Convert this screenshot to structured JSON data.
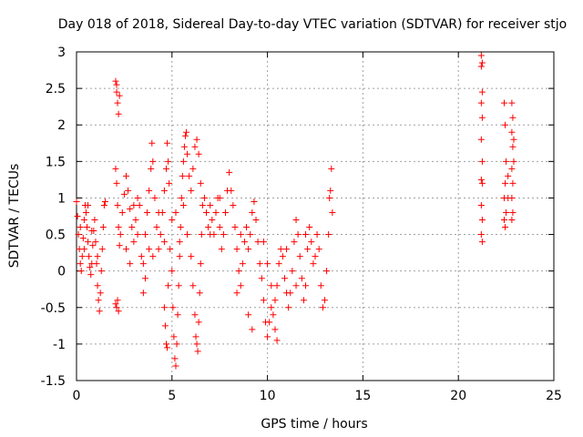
{
  "chart_data": {
    "type": "scatter",
    "title": "Day 018 of 2018, Sidereal Day-to-day VTEC variation (SDTVAR) for receiver stjo",
    "xlabel": "GPS time / hours",
    "ylabel": "SDTVAR / TECUs",
    "xlim": [
      0,
      25
    ],
    "ylim": [
      -1.5,
      3
    ],
    "grid": true,
    "marker": "plus",
    "color": "#ff0000",
    "x_ticks": [
      0,
      5,
      10,
      15,
      20,
      25
    ],
    "x_tick_labels": [
      "0",
      "5",
      "10",
      "15",
      "20",
      "25"
    ],
    "y_ticks": [
      -1.5,
      -1,
      -0.5,
      0,
      0.5,
      1,
      1.5,
      2,
      2.5,
      3
    ],
    "y_tick_labels": [
      "-1.5",
      "-1",
      "-0.5",
      "0",
      "0.5",
      "1",
      "1.5",
      "2",
      "2.5",
      "3"
    ],
    "series": [
      {
        "name": "SDTVAR",
        "points": [
          [
            0.0,
            0.95
          ],
          [
            0.05,
            0.75
          ],
          [
            0.1,
            0.5
          ],
          [
            0.15,
            0.3
          ],
          [
            0.2,
            0.1
          ],
          [
            0.25,
            0.0
          ],
          [
            0.3,
            0.2
          ],
          [
            0.35,
            0.45
          ],
          [
            0.4,
            0.7
          ],
          [
            0.45,
            0.9
          ],
          [
            0.5,
            0.8
          ],
          [
            0.55,
            0.6
          ],
          [
            0.6,
            0.4
          ],
          [
            0.65,
            0.2
          ],
          [
            0.7,
            0.05
          ],
          [
            0.75,
            -0.05
          ],
          [
            0.8,
            0.1
          ],
          [
            0.85,
            0.35
          ],
          [
            0.9,
            0.55
          ],
          [
            0.95,
            0.7
          ],
          [
            1.0,
            0.4
          ],
          [
            1.05,
            0.1
          ],
          [
            1.1,
            -0.2
          ],
          [
            1.15,
            -0.4
          ],
          [
            1.2,
            -0.55
          ],
          [
            1.25,
            -0.3
          ],
          [
            1.3,
            0.0
          ],
          [
            1.35,
            0.3
          ],
          [
            1.4,
            0.6
          ],
          [
            1.45,
            0.9
          ],
          [
            1.5,
            0.95
          ],
          [
            0.2,
            0.6
          ],
          [
            0.4,
            0.3
          ],
          [
            0.6,
            0.9
          ],
          [
            0.8,
            0.55
          ],
          [
            1.1,
            0.2
          ],
          [
            2.05,
            2.6
          ],
          [
            2.1,
            2.45
          ],
          [
            2.15,
            2.3
          ],
          [
            2.2,
            2.15
          ],
          [
            2.25,
            2.4
          ],
          [
            2.1,
            2.55
          ],
          [
            2.05,
            -0.45
          ],
          [
            2.1,
            -0.5
          ],
          [
            2.15,
            -0.4
          ],
          [
            2.2,
            -0.55
          ],
          [
            2.05,
            1.4
          ],
          [
            2.1,
            1.2
          ],
          [
            2.15,
            0.9
          ],
          [
            2.2,
            0.6
          ],
          [
            2.25,
            0.35
          ],
          [
            2.3,
            0.5
          ],
          [
            2.4,
            0.8
          ],
          [
            2.5,
            1.05
          ],
          [
            2.6,
            1.3
          ],
          [
            2.7,
            1.1
          ],
          [
            2.8,
            0.85
          ],
          [
            2.9,
            0.6
          ],
          [
            3.0,
            0.4
          ],
          [
            3.1,
            0.7
          ],
          [
            3.2,
            1.0
          ],
          [
            3.3,
            0.9
          ],
          [
            3.4,
            0.2
          ],
          [
            3.5,
            0.1
          ],
          [
            3.6,
            0.5
          ],
          [
            3.7,
            0.8
          ],
          [
            3.8,
            1.1
          ],
          [
            3.9,
            1.4
          ],
          [
            3.95,
            1.75
          ],
          [
            4.0,
            1.5
          ],
          [
            4.1,
            1.0
          ],
          [
            4.2,
            0.6
          ],
          [
            4.3,
            0.3
          ],
          [
            4.4,
            0.5
          ],
          [
            4.5,
            0.8
          ],
          [
            4.6,
            1.1
          ],
          [
            4.7,
            1.4
          ],
          [
            4.75,
            1.75
          ],
          [
            4.8,
            1.5
          ],
          [
            4.85,
            1.2
          ],
          [
            2.6,
            0.3
          ],
          [
            2.8,
            0.1
          ],
          [
            3.0,
            0.9
          ],
          [
            3.2,
            0.5
          ],
          [
            3.5,
            -0.3
          ],
          [
            3.6,
            -0.1
          ],
          [
            3.8,
            0.3
          ],
          [
            4.0,
            0.2
          ],
          [
            4.3,
            0.8
          ],
          [
            4.6,
            0.4
          ],
          [
            4.6,
            -0.5
          ],
          [
            4.65,
            -0.75
          ],
          [
            4.7,
            -1.0
          ],
          [
            4.75,
            -1.05
          ],
          [
            4.8,
            -0.2
          ],
          [
            4.9,
            0.3
          ],
          [
            5.0,
            0.7
          ],
          [
            5.0,
            0.0
          ],
          [
            5.05,
            -0.5
          ],
          [
            5.1,
            -0.9
          ],
          [
            5.15,
            -1.2
          ],
          [
            5.2,
            -1.3
          ],
          [
            5.25,
            -1.0
          ],
          [
            5.3,
            -0.6
          ],
          [
            5.35,
            -0.2
          ],
          [
            5.4,
            0.2
          ],
          [
            5.45,
            0.6
          ],
          [
            5.5,
            1.0
          ],
          [
            5.55,
            1.3
          ],
          [
            5.6,
            1.5
          ],
          [
            5.65,
            1.7
          ],
          [
            5.7,
            1.85
          ],
          [
            5.75,
            1.9
          ],
          [
            5.8,
            1.6
          ],
          [
            5.9,
            1.3
          ],
          [
            6.0,
            1.1
          ],
          [
            6.1,
            1.4
          ],
          [
            6.2,
            1.7
          ],
          [
            6.3,
            1.8
          ],
          [
            6.4,
            1.6
          ],
          [
            6.5,
            1.2
          ],
          [
            6.6,
            0.9
          ],
          [
            5.2,
            0.8
          ],
          [
            5.4,
            0.4
          ],
          [
            5.6,
            0.9
          ],
          [
            5.8,
            0.5
          ],
          [
            6.0,
            0.2
          ],
          [
            6.1,
            -0.2
          ],
          [
            6.2,
            -0.6
          ],
          [
            6.25,
            -0.9
          ],
          [
            6.3,
            -1.0
          ],
          [
            6.35,
            -1.1
          ],
          [
            6.4,
            -0.7
          ],
          [
            6.45,
            -0.3
          ],
          [
            6.5,
            0.1
          ],
          [
            6.55,
            0.5
          ],
          [
            6.7,
            1.0
          ],
          [
            6.8,
            0.8
          ],
          [
            6.9,
            0.6
          ],
          [
            7.0,
            0.9
          ],
          [
            7.1,
            0.7
          ],
          [
            7.2,
            0.5
          ],
          [
            7.3,
            0.8
          ],
          [
            7.4,
            1.0
          ],
          [
            7.5,
            0.6
          ],
          [
            7.6,
            0.3
          ],
          [
            7.7,
            0.5
          ],
          [
            7.8,
            0.8
          ],
          [
            7.9,
            1.1
          ],
          [
            8.0,
            1.35
          ],
          [
            8.1,
            1.1
          ],
          [
            8.2,
            0.9
          ],
          [
            8.3,
            0.6
          ],
          [
            8.4,
            0.3
          ],
          [
            8.5,
            0.0
          ],
          [
            8.6,
            -0.2
          ],
          [
            8.7,
            0.1
          ],
          [
            8.8,
            0.4
          ],
          [
            8.9,
            0.6
          ],
          [
            9.0,
            0.3
          ],
          [
            9.1,
            0.5
          ],
          [
            9.2,
            0.8
          ],
          [
            9.3,
            0.95
          ],
          [
            9.4,
            0.7
          ],
          [
            9.5,
            0.4
          ],
          [
            9.6,
            0.1
          ],
          [
            9.7,
            -0.1
          ],
          [
            9.8,
            -0.4
          ],
          [
            9.9,
            -0.7
          ],
          [
            10.0,
            -0.9
          ],
          [
            10.1,
            -0.7
          ],
          [
            10.2,
            -0.5
          ],
          [
            10.3,
            -0.6
          ],
          [
            10.4,
            -0.4
          ],
          [
            10.5,
            -0.2
          ],
          [
            10.6,
            0.1
          ],
          [
            10.7,
            0.3
          ],
          [
            10.8,
            0.2
          ],
          [
            10.9,
            -0.1
          ],
          [
            11.0,
            -0.3
          ],
          [
            11.1,
            -0.5
          ],
          [
            11.2,
            -0.3
          ],
          [
            11.3,
            0.0
          ],
          [
            11.4,
            0.4
          ],
          [
            11.5,
            0.7
          ],
          [
            11.6,
            0.5
          ],
          [
            11.7,
            0.2
          ],
          [
            11.8,
            -0.1
          ],
          [
            11.9,
            -0.4
          ],
          [
            12.0,
            -0.2
          ],
          [
            12.1,
            0.3
          ],
          [
            12.2,
            0.6
          ],
          [
            12.3,
            0.4
          ],
          [
            12.4,
            0.1
          ],
          [
            12.5,
            0.2
          ],
          [
            12.6,
            0.5
          ],
          [
            12.7,
            0.3
          ],
          [
            12.8,
            -0.2
          ],
          [
            12.9,
            -0.5
          ],
          [
            13.0,
            -0.4
          ],
          [
            13.1,
            0.0
          ],
          [
            13.2,
            0.5
          ],
          [
            13.25,
            1.0
          ],
          [
            13.3,
            1.1
          ],
          [
            13.35,
            1.4
          ],
          [
            13.4,
            0.8
          ],
          [
            9.8,
            0.4
          ],
          [
            10.0,
            0.1
          ],
          [
            10.2,
            -0.2
          ],
          [
            10.4,
            -0.8
          ],
          [
            10.5,
            -0.95
          ],
          [
            11.0,
            0.3
          ],
          [
            11.5,
            -0.2
          ],
          [
            12.0,
            0.5
          ],
          [
            8.4,
            -0.3
          ],
          [
            8.6,
            0.5
          ],
          [
            9.0,
            -0.6
          ],
          [
            9.2,
            -0.8
          ],
          [
            7.5,
            1.0
          ],
          [
            7.0,
            0.5
          ],
          [
            21.2,
            2.95
          ],
          [
            21.25,
            2.85
          ],
          [
            21.2,
            2.8
          ],
          [
            21.25,
            2.45
          ],
          [
            21.2,
            2.3
          ],
          [
            21.25,
            2.1
          ],
          [
            21.2,
            1.8
          ],
          [
            21.25,
            1.5
          ],
          [
            21.2,
            1.25
          ],
          [
            21.25,
            1.2
          ],
          [
            21.2,
            0.9
          ],
          [
            21.25,
            0.7
          ],
          [
            21.2,
            0.5
          ],
          [
            21.25,
            0.4
          ],
          [
            22.4,
            2.3
          ],
          [
            22.45,
            2.0
          ],
          [
            22.5,
            1.5
          ],
          [
            22.45,
            1.2
          ],
          [
            22.4,
            1.0
          ],
          [
            22.5,
            0.8
          ],
          [
            22.45,
            0.6
          ],
          [
            22.4,
            0.7
          ],
          [
            22.8,
            2.3
          ],
          [
            22.85,
            2.1
          ],
          [
            22.8,
            1.9
          ],
          [
            22.85,
            1.7
          ],
          [
            22.8,
            1.4
          ],
          [
            22.85,
            1.2
          ],
          [
            22.8,
            1.0
          ],
          [
            22.85,
            0.8
          ],
          [
            22.8,
            0.7
          ],
          [
            22.9,
            1.8
          ],
          [
            22.9,
            1.5
          ],
          [
            22.6,
            1.3
          ],
          [
            22.6,
            1.0
          ]
        ]
      }
    ]
  }
}
